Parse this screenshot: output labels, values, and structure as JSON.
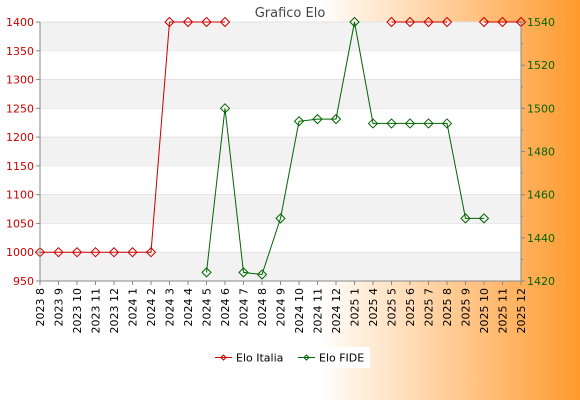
{
  "chart_data": {
    "type": "line",
    "title": "Grafico Elo",
    "categories": [
      "2023 8",
      "2023 9",
      "2023 10",
      "2023 11",
      "2023 12",
      "2024 1",
      "2024 2",
      "2024 3",
      "2024 4",
      "2024 5",
      "2024 6",
      "2024 7",
      "2024 8",
      "2024 9",
      "2024 10",
      "2024 11",
      "2024 12",
      "2025 1",
      "2025 4",
      "2025 5",
      "2025 6",
      "2025 7",
      "2025 8",
      "2025 9",
      "2025 10",
      "2025 11",
      "2025 12"
    ],
    "y_left": {
      "min": 950,
      "max": 1400,
      "ticks": [
        "950",
        "1000",
        "1050",
        "1100",
        "1150",
        "1200",
        "1250",
        "1300",
        "1350",
        "1400"
      ],
      "color": "#cc0000"
    },
    "y_right": {
      "min": 1420,
      "max": 1540,
      "ticks": [
        "1420",
        "1440",
        "1460",
        "1480",
        "1500",
        "1520",
        "1540"
      ],
      "color": "#006600"
    },
    "series": [
      {
        "name": "Elo Italia",
        "axis": "left",
        "color": "#cc0000",
        "values": [
          1000,
          1000,
          1000,
          1000,
          1000,
          1000,
          1000,
          1400,
          1400,
          1400,
          1400,
          null,
          null,
          null,
          null,
          null,
          null,
          null,
          null,
          1400,
          1400,
          1400,
          1400,
          null,
          1400,
          1400,
          1400
        ]
      },
      {
        "name": "Elo FIDE",
        "axis": "right",
        "color": "#006600",
        "values": [
          null,
          null,
          null,
          null,
          null,
          null,
          null,
          null,
          null,
          1424,
          1500,
          1424,
          1423,
          1449,
          1494,
          1495,
          1495,
          1540,
          1493,
          1493,
          1493,
          1493,
          1493,
          1449,
          1449,
          null,
          null
        ]
      }
    ],
    "legend": "bottom-center",
    "grid": "horizontal-bands"
  }
}
